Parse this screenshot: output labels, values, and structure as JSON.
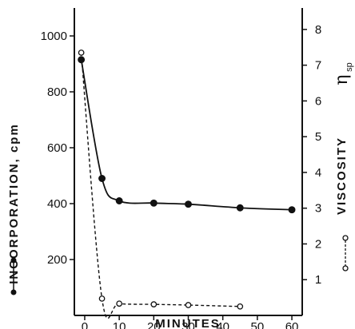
{
  "chart_data": {
    "type": "line",
    "xlabel": "MINUTES",
    "ylabel_left": "INCORPORATION, cpm",
    "ylabel_right_text": "VISCOSITY",
    "ylabel_right_symbol": "η",
    "ylabel_right_subscript": "sp",
    "xlim": [
      -3,
      63
    ],
    "ylim_left": [
      0,
      1100
    ],
    "ylim_right": [
      0,
      8.6
    ],
    "x_ticks": [
      0,
      10,
      20,
      30,
      40,
      50,
      60
    ],
    "y_left_ticks": [
      200,
      400,
      600,
      800,
      1000
    ],
    "y_right_ticks": [
      1,
      2,
      3,
      4,
      5,
      6,
      7,
      8
    ],
    "series": [
      {
        "axis": "left",
        "marker": "filled",
        "line": "solid",
        "color": "#111111",
        "points": [
          {
            "x": -1,
            "y": 915
          },
          {
            "x": 5,
            "y": 490
          },
          {
            "x": 10,
            "y": 410
          },
          {
            "x": 20,
            "y": 402
          },
          {
            "x": 30,
            "y": 398
          },
          {
            "x": 45,
            "y": 385
          },
          {
            "x": 60,
            "y": 378
          }
        ]
      },
      {
        "axis": "right",
        "marker": "open",
        "line": "dashed",
        "color": "#111111",
        "points": [
          {
            "x": -1,
            "y": 7.35
          },
          {
            "x": 5,
            "y": 0.47
          },
          {
            "x": 10,
            "y": 0.33
          },
          {
            "x": 20,
            "y": 0.31
          },
          {
            "x": 30,
            "y": 0.29
          },
          {
            "x": 45,
            "y": 0.25
          }
        ]
      }
    ]
  }
}
